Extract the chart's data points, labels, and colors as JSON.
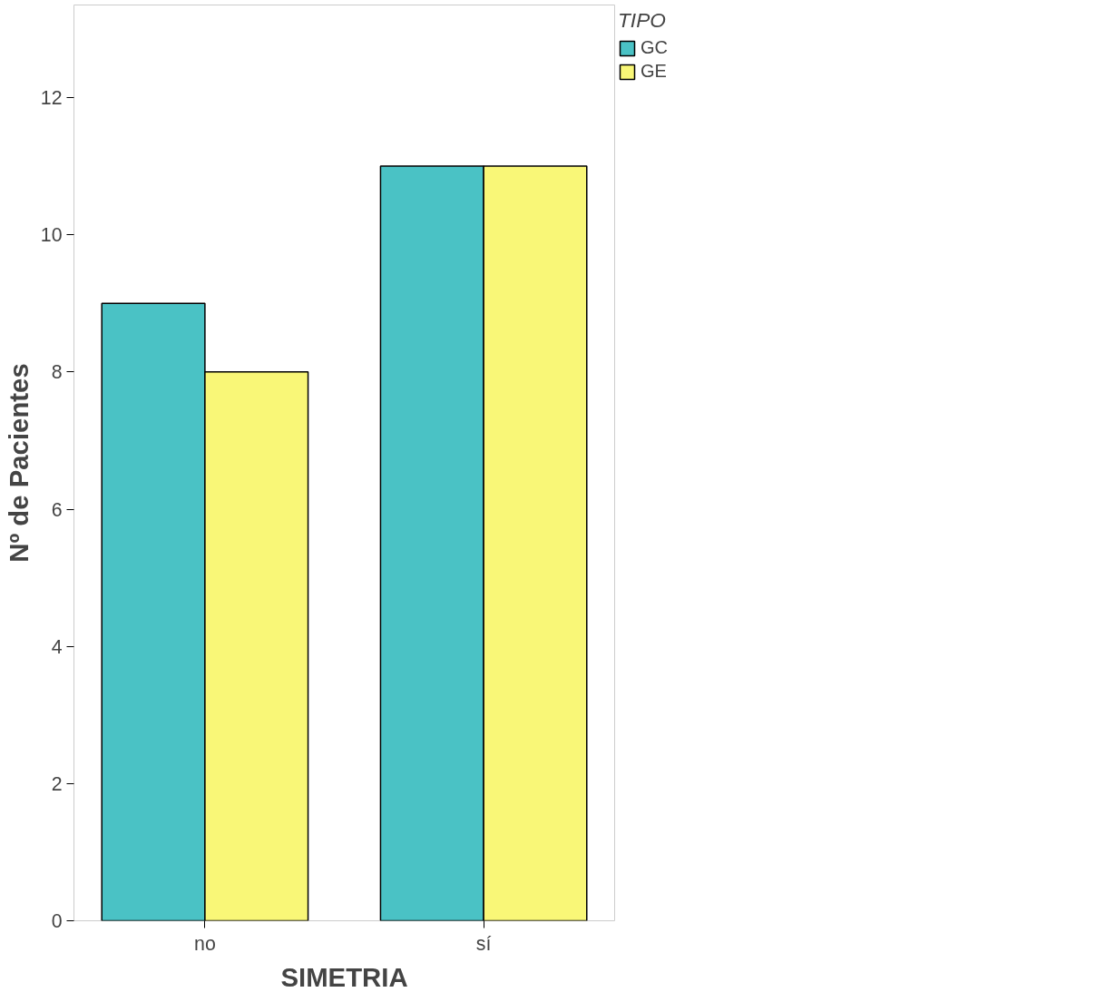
{
  "chart_data": {
    "type": "bar",
    "xlabel": "SIMETRIA",
    "ylabel": "Nº de Pacientes",
    "legend_title": "TIPO",
    "categories": [
      "no",
      "sí"
    ],
    "series": [
      {
        "name": "GC",
        "color": "#4ac2c5",
        "values": [
          9,
          11
        ]
      },
      {
        "name": "GE",
        "color": "#f9f777",
        "values": [
          8,
          11
        ]
      }
    ],
    "ylim": [
      0,
      13.35
    ],
    "yticks": [
      0,
      2,
      4,
      6,
      8,
      10,
      12
    ],
    "grid": false,
    "legend": "top right"
  }
}
